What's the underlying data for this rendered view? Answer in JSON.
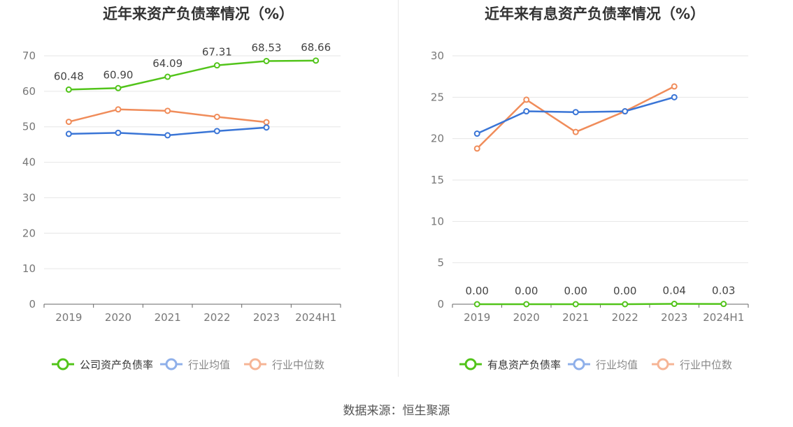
{
  "source": "数据来源：恒生聚源",
  "chart_data": [
    {
      "type": "line",
      "title": "近年来资产负债率情况（%）",
      "categories": [
        "2019",
        "2020",
        "2021",
        "2022",
        "2023",
        "2024H1"
      ],
      "y_ticks": [
        "0",
        "10",
        "20",
        "30",
        "40",
        "50",
        "60",
        "70"
      ],
      "ylim": [
        0,
        70
      ],
      "grid": true,
      "legend_position": "bottom",
      "series": [
        {
          "name": "公司资产负债率",
          "color": "#52c41a",
          "values": [
            60.48,
            60.9,
            64.09,
            67.31,
            68.53,
            68.66
          ],
          "labels": [
            "60.48",
            "60.90",
            "64.09",
            "67.31",
            "68.53",
            "68.66"
          ]
        },
        {
          "name": "行业均值",
          "color": "#3a75d6",
          "values": [
            48.0,
            48.3,
            47.6,
            48.8,
            49.8,
            null
          ]
        },
        {
          "name": "行业中位数",
          "color": "#f08c5a",
          "values": [
            51.4,
            54.9,
            54.5,
            52.8,
            51.3,
            null
          ]
        }
      ]
    },
    {
      "type": "line",
      "title": "近年来有息资产负债率情况（%）",
      "categories": [
        "2019",
        "2020",
        "2021",
        "2022",
        "2023",
        "2024H1"
      ],
      "y_ticks": [
        "0",
        "5",
        "10",
        "15",
        "20",
        "25",
        "30"
      ],
      "ylim": [
        0,
        30
      ],
      "grid": true,
      "legend_position": "bottom",
      "series": [
        {
          "name": "有息资产负债率",
          "color": "#52c41a",
          "values": [
            0.0,
            0.0,
            0.0,
            0.0,
            0.04,
            0.03
          ],
          "labels": [
            "0.00",
            "0.00",
            "0.00",
            "0.00",
            "0.04",
            "0.03"
          ]
        },
        {
          "name": "行业均值",
          "color": "#3a75d6",
          "values": [
            20.6,
            23.3,
            23.2,
            23.3,
            25.0,
            null
          ]
        },
        {
          "name": "行业中位数",
          "color": "#f08c5a",
          "values": [
            18.8,
            24.7,
            20.8,
            23.3,
            26.3,
            null
          ]
        }
      ]
    }
  ]
}
